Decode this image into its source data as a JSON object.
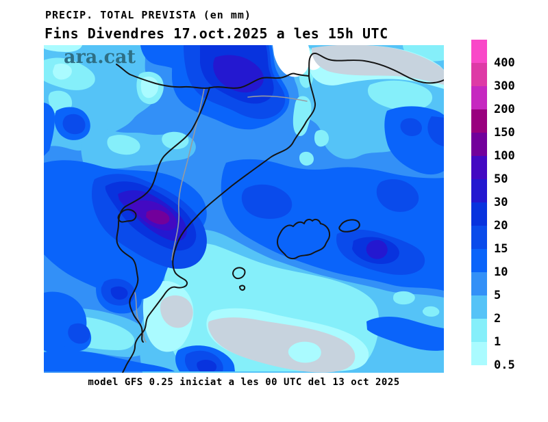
{
  "title": {
    "line1": "PRECIP. TOTAL PREVISTA (en mm)",
    "line2": "Fins Divendres 17.oct.2025 a les 15h UTC"
  },
  "watermark": {
    "text": "ara.cat",
    "color": "#2E6F85"
  },
  "caption": "model GFS 0.25 iniciat a les 00 UTC del 13 oct 2025",
  "legend": {
    "units": "mm",
    "entries": [
      {
        "label": "400",
        "color": "#F948C8"
      },
      {
        "label": "300",
        "color": "#DE3AA6"
      },
      {
        "label": "200",
        "color": "#C628C0"
      },
      {
        "label": "150",
        "color": "#99007E"
      },
      {
        "label": "100",
        "color": "#72009B"
      },
      {
        "label": "50",
        "color": "#4309C2"
      },
      {
        "label": "30",
        "color": "#2418D0"
      },
      {
        "label": "20",
        "color": "#0833DE"
      },
      {
        "label": "15",
        "color": "#0A4BEB"
      },
      {
        "label": "10",
        "color": "#0A64FA"
      },
      {
        "label": "5",
        "color": "#3390F7"
      },
      {
        "label": "2",
        "color": "#55C3F7"
      },
      {
        "label": "1",
        "color": "#85EFFA"
      },
      {
        "label": "0.5",
        "color": "#AAFBFF"
      }
    ]
  },
  "map": {
    "palette": {
      "b05": "#AAFBFF",
      "b1": "#85EFFA",
      "b2": "#55C3F7",
      "b5": "#3390F7",
      "b10": "#0A64FA",
      "b15": "#0A4BEB",
      "b20": "#0833DE",
      "b30": "#2418D0",
      "b50": "#4309C2",
      "b100": "#72009B",
      "none": "#FFFFFF",
      "trace": "#C7D3DE",
      "coast": "#141414",
      "region_border": "#969BA1"
    }
  }
}
